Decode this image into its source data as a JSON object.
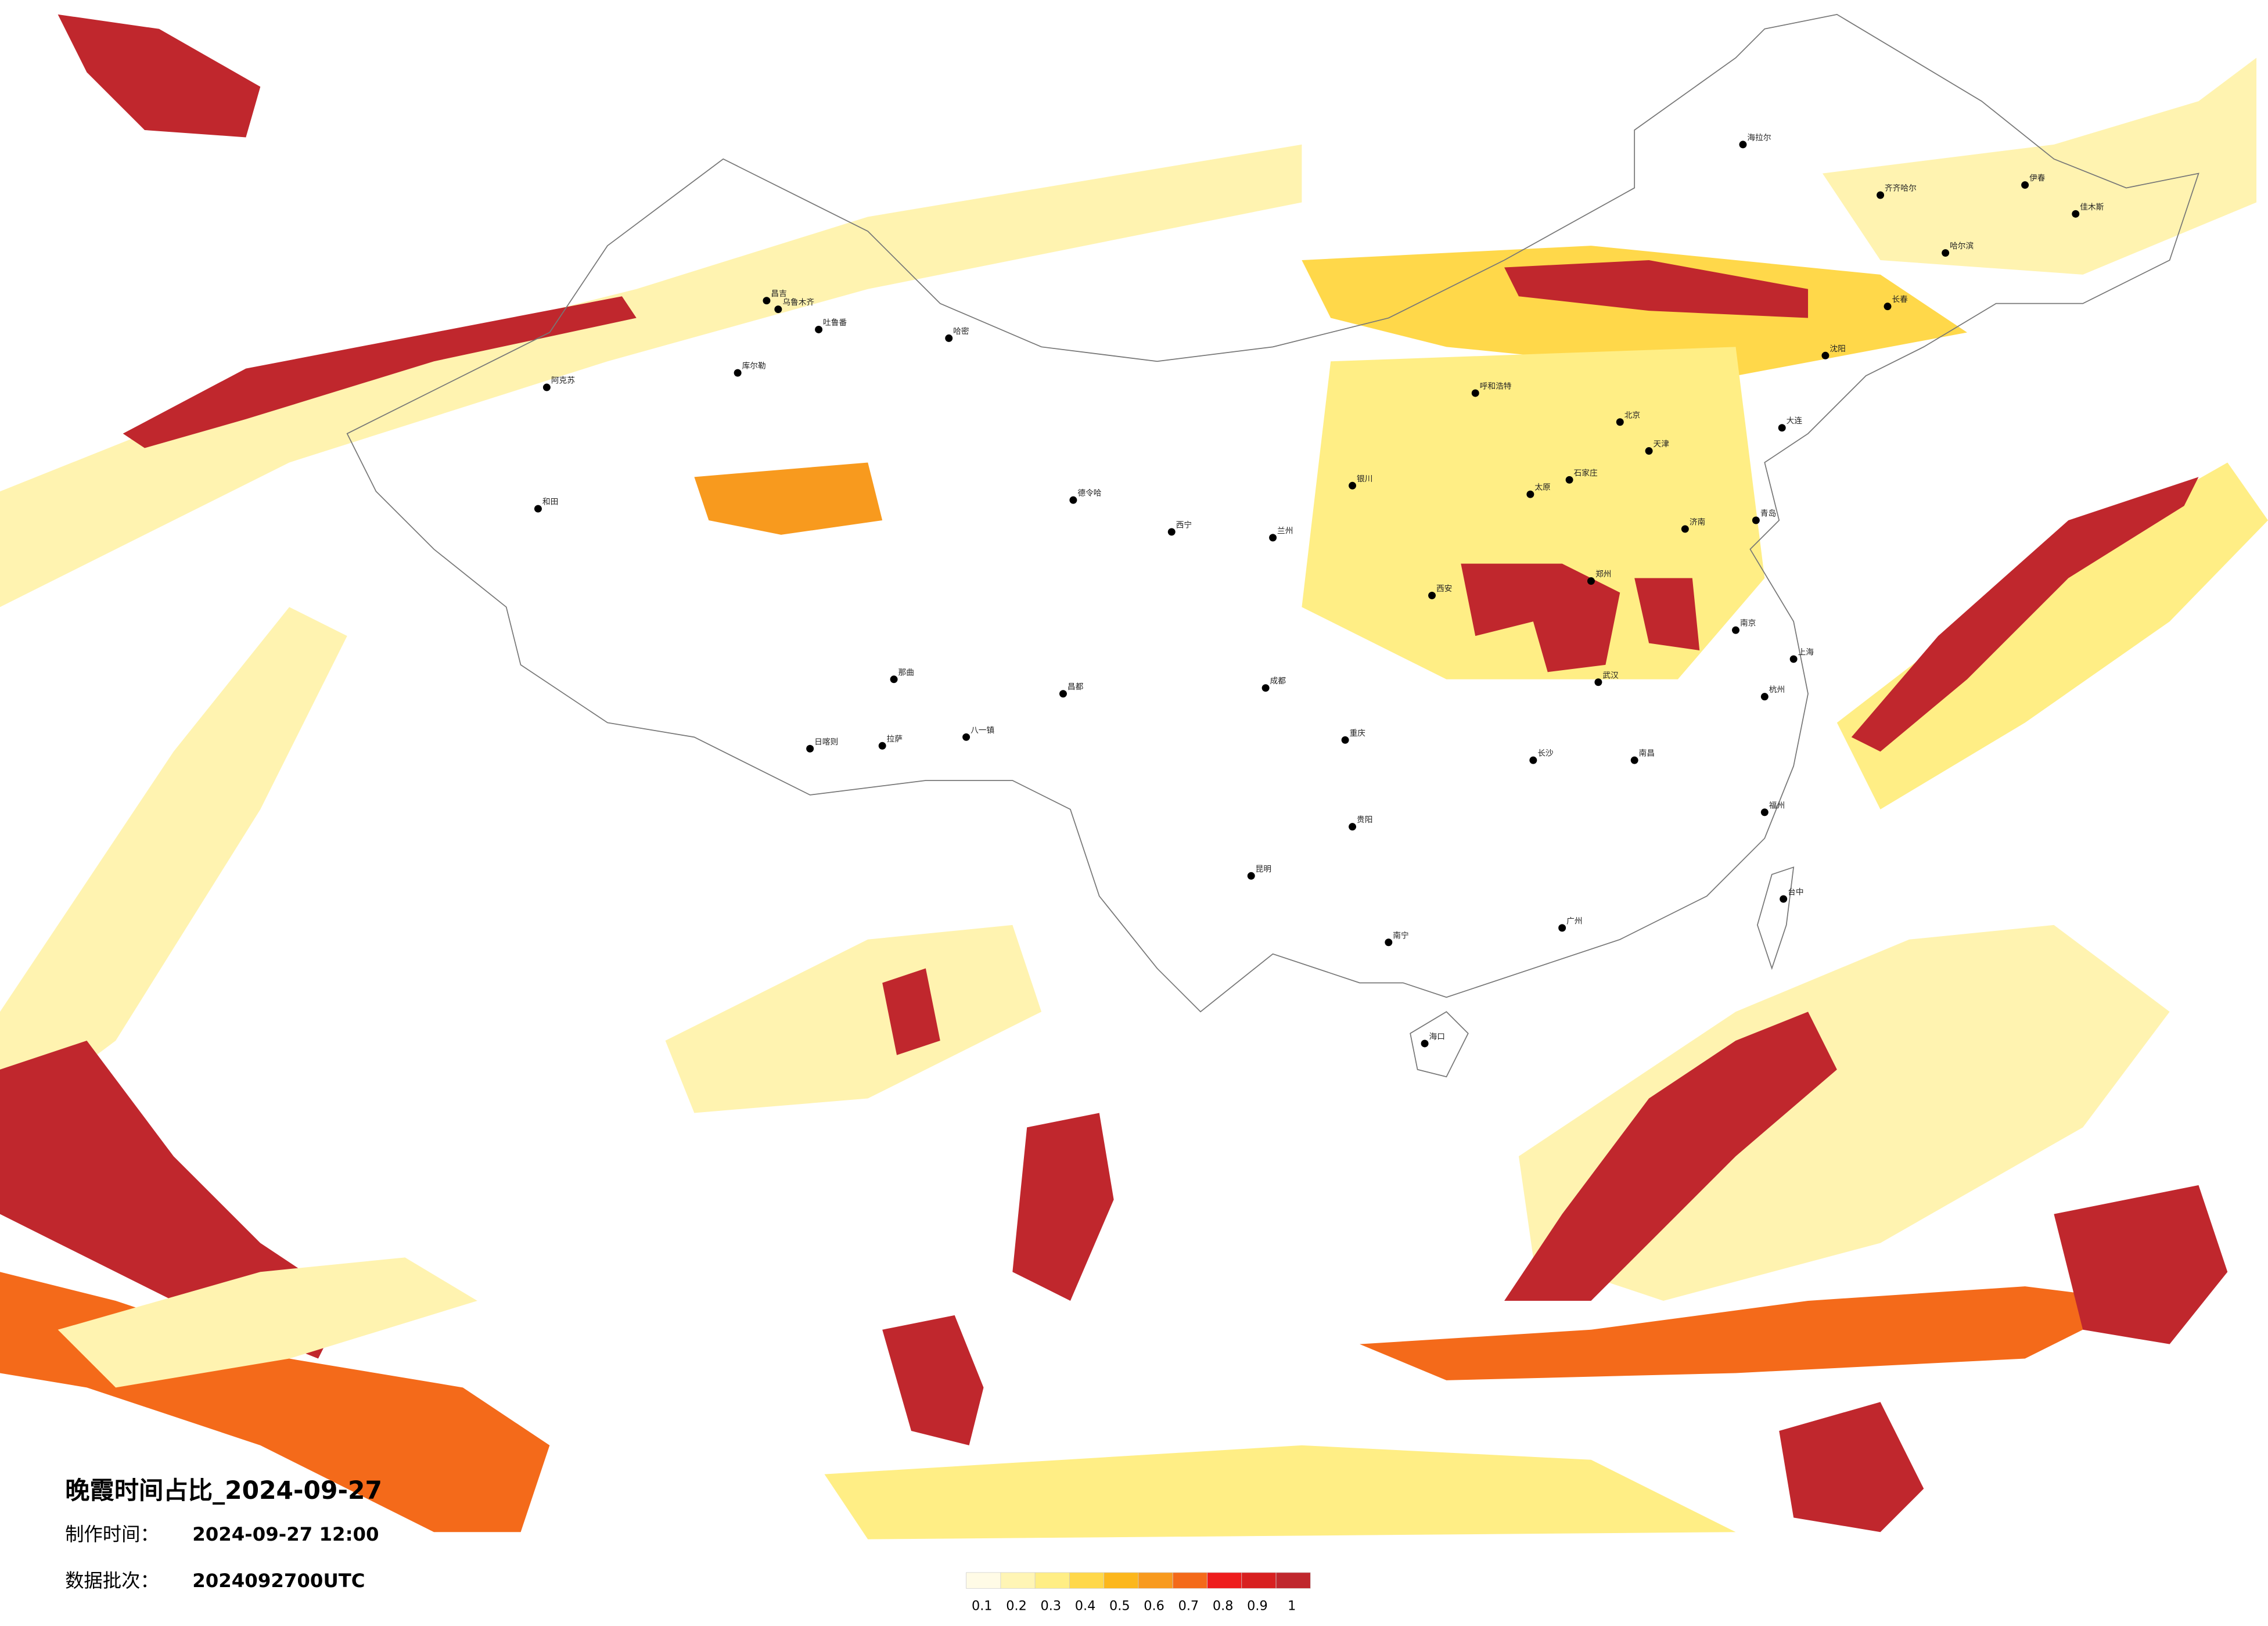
{
  "header": {
    "title": "晚霞时间占比_2024-09-27",
    "made_label": "制作时间：",
    "made_time": "2024-09-27 12:00",
    "batch_label": "数据批次：",
    "batch": "2024092700UTC"
  },
  "legend": {
    "colors": [
      "#fffbe6",
      "#fff5b5",
      "#ffee85",
      "#ffd84a",
      "#fcb71c",
      "#f89a1e",
      "#f46a1a",
      "#ee1c1c",
      "#d82020",
      "#c0272d"
    ],
    "labels": [
      0.1,
      0.2,
      0.3,
      0.4,
      0.5,
      0.6,
      0.7,
      0.8,
      0.9,
      1
    ]
  },
  "cities": [
    "海拉尔",
    "齐齐哈尔",
    "伊春",
    "佳木斯",
    "哈尔滨",
    "长春",
    "沈阳",
    "大连",
    "阿克苏",
    "和田",
    "昌吉",
    "乌鲁木齐",
    "吐鲁番",
    "哈密",
    "库尔勒",
    "德令哈",
    "西宁",
    "兰州",
    "银川",
    "拉萨",
    "日喀则",
    "那曲",
    "八一镇",
    "昌都",
    "呼和浩特",
    "北京",
    "天津",
    "石家庄",
    "太原",
    "济南",
    "青岛",
    "郑州",
    "西安",
    "武汉",
    "南京",
    "上海",
    "杭州",
    "长沙",
    "南昌",
    "福州",
    "广州",
    "南宁",
    "昆明",
    "贵阳",
    "成都",
    "重庆",
    "海口",
    "台中"
  ]
}
